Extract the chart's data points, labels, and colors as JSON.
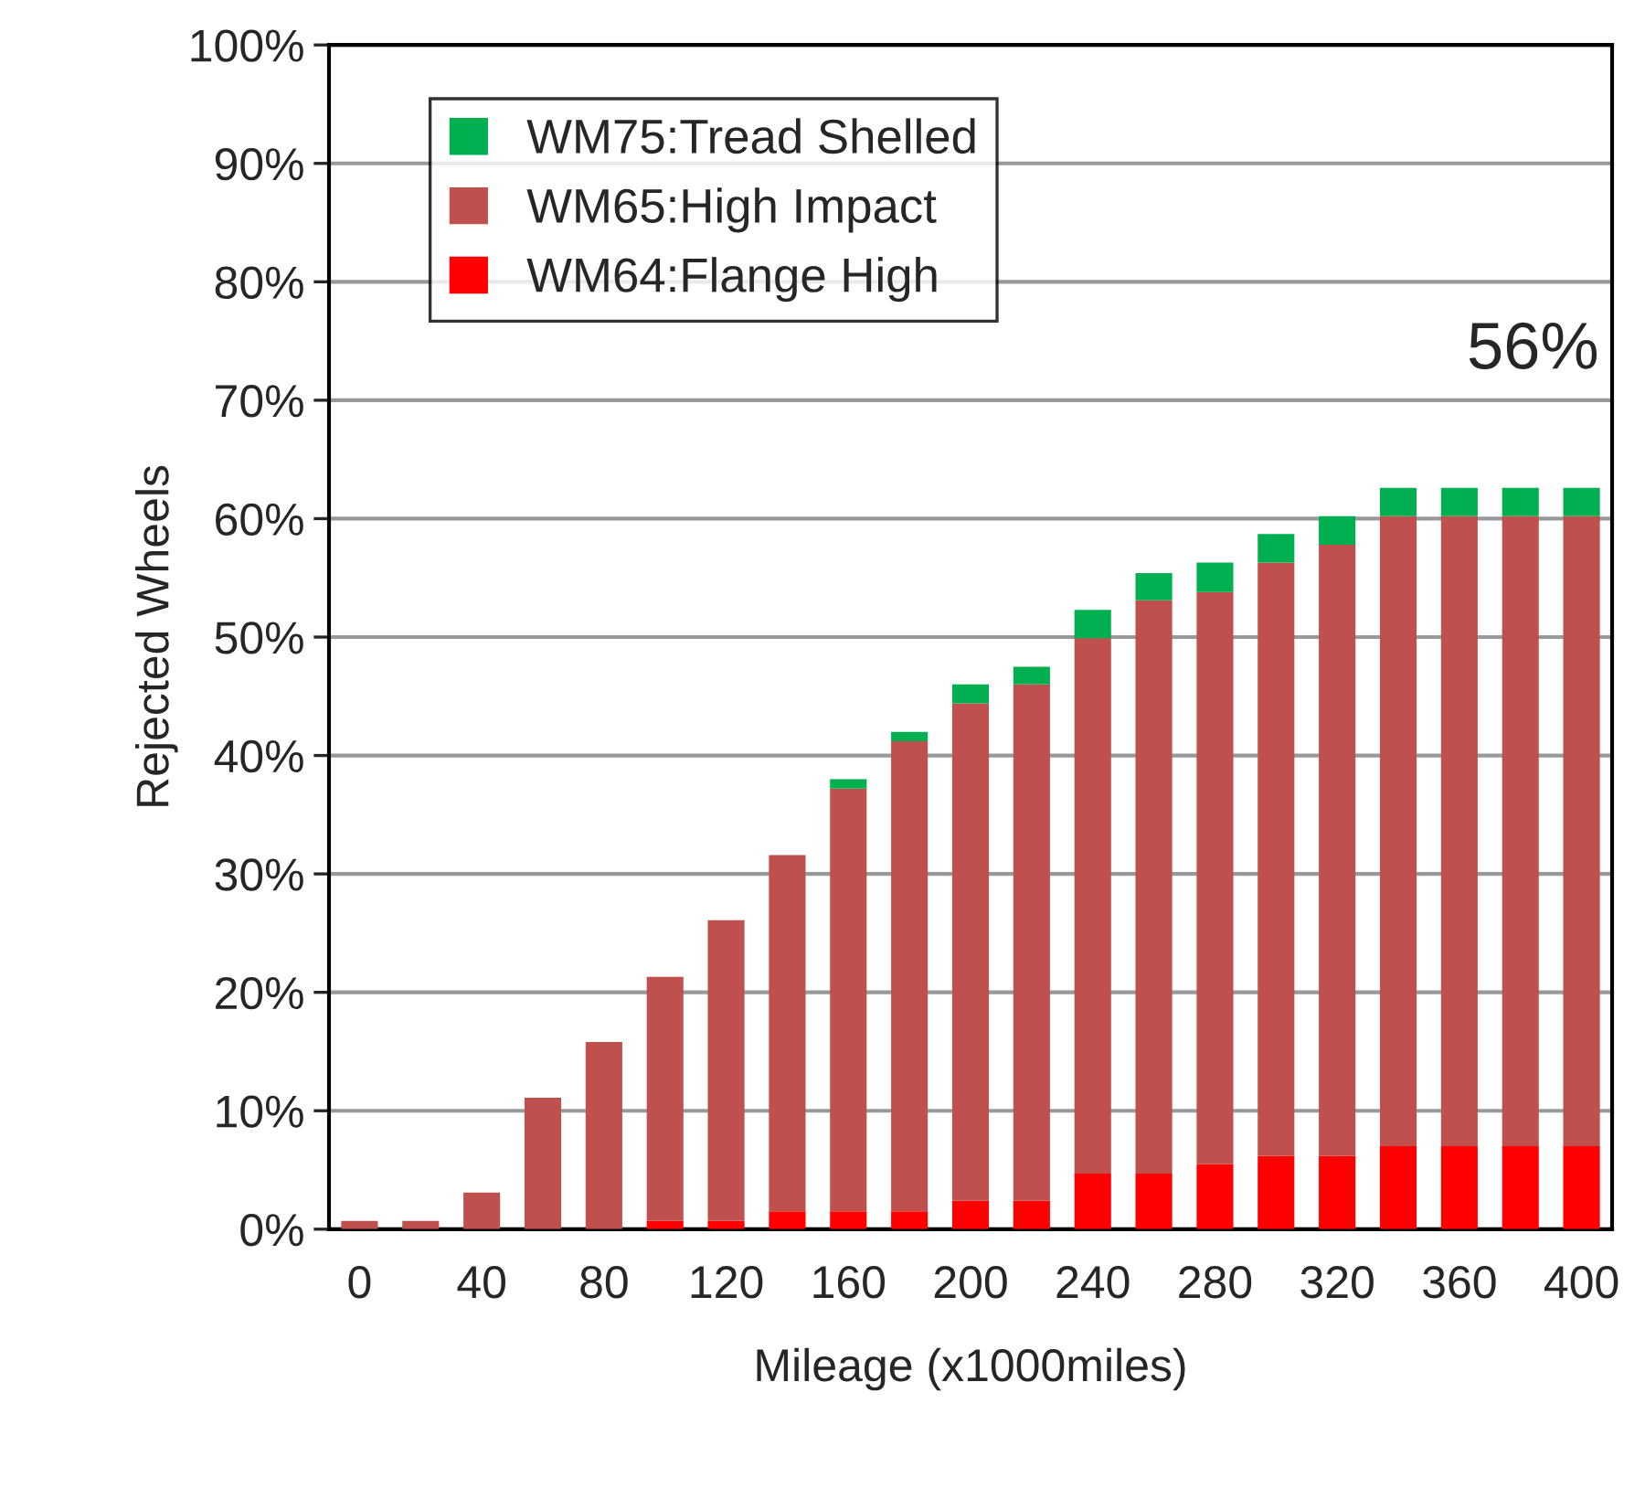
{
  "chart_data": {
    "type": "bar",
    "stacked": true,
    "ylabel": "Rejected Wheels",
    "xlabel": "Mileage (x1000miles)",
    "categories": [
      "0",
      null,
      "40",
      null,
      "80",
      null,
      "120",
      null,
      "160",
      null,
      "200",
      null,
      "240",
      null,
      "280",
      null,
      "320",
      null,
      "360",
      null,
      "400"
    ],
    "series": [
      {
        "name": "WM64:Flange High",
        "color": "#ff0000",
        "values": [
          0,
          0,
          0,
          0,
          0,
          0.7,
          0.7,
          1.5,
          1.5,
          1.5,
          2.4,
          2.4,
          4.7,
          4.7,
          5.5,
          6.2,
          6.2,
          7.0,
          7.0,
          7.0,
          7.0
        ]
      },
      {
        "name": "WM65:High Impact",
        "color": "#c0504d",
        "values": [
          0.7,
          0.7,
          3.1,
          11.1,
          15.8,
          20.6,
          25.4,
          30.1,
          35.7,
          39.7,
          42.0,
          43.6,
          45.2,
          48.4,
          48.3,
          50.1,
          51.6,
          53.2,
          53.2,
          53.2,
          53.2
        ]
      },
      {
        "name": "WM75:Tread Shelled",
        "color": "#00b050",
        "values": [
          0,
          0,
          0,
          0,
          0,
          0,
          0,
          0,
          0.8,
          0.8,
          1.6,
          1.5,
          2.4,
          2.3,
          2.5,
          2.4,
          2.4,
          2.4,
          2.4,
          2.4,
          2.4
        ]
      }
    ],
    "ylim": [
      0,
      100
    ],
    "yticks": [
      {
        "value": 0,
        "label": "0%"
      },
      {
        "value": 10,
        "label": "10%"
      },
      {
        "value": 20,
        "label": "20%"
      },
      {
        "value": 30,
        "label": "30%"
      },
      {
        "value": 40,
        "label": "40%"
      },
      {
        "value": 50,
        "label": "50%"
      },
      {
        "value": 60,
        "label": "60%"
      },
      {
        "value": 70,
        "label": "70%"
      },
      {
        "value": 80,
        "label": "80%"
      },
      {
        "value": 90,
        "label": "90%"
      },
      {
        "value": 100,
        "label": "100%"
      }
    ],
    "grid": "y",
    "legend": "top left",
    "annotations": [
      "56%"
    ]
  }
}
